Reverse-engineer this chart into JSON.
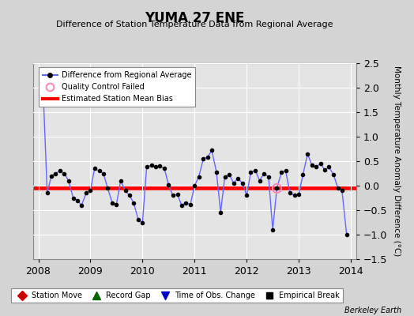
{
  "title": "YUMA 27 ENE",
  "subtitle": "Difference of Station Temperature Data from Regional Average",
  "ylabel": "Monthly Temperature Anomaly Difference (°C)",
  "xlim": [
    2007.9,
    2014.1
  ],
  "ylim": [
    -1.5,
    2.5
  ],
  "yticks": [
    -1.5,
    -1.0,
    -0.5,
    0,
    0.5,
    1.0,
    1.5,
    2.0,
    2.5
  ],
  "xticks": [
    2008,
    2009,
    2010,
    2011,
    2012,
    2013,
    2014
  ],
  "bias_level": -0.05,
  "bg_fig_color": "#d4d4d4",
  "bg_ax_color": "#e4e4e4",
  "line_color": "#6666ff",
  "marker_color": "#000000",
  "bias_color": "#ff0000",
  "qc_fail_x": 2012.58,
  "qc_fail_y": -0.05,
  "time_series": [
    [
      2008.08,
      2.3
    ],
    [
      2008.17,
      -0.15
    ],
    [
      2008.25,
      0.2
    ],
    [
      2008.33,
      0.25
    ],
    [
      2008.42,
      0.3
    ],
    [
      2008.5,
      0.25
    ],
    [
      2008.58,
      0.1
    ],
    [
      2008.67,
      -0.25
    ],
    [
      2008.75,
      -0.3
    ],
    [
      2008.83,
      -0.4
    ],
    [
      2008.92,
      -0.15
    ],
    [
      2009.0,
      -0.1
    ],
    [
      2009.08,
      0.35
    ],
    [
      2009.17,
      0.3
    ],
    [
      2009.25,
      0.25
    ],
    [
      2009.33,
      -0.05
    ],
    [
      2009.42,
      -0.35
    ],
    [
      2009.5,
      -0.38
    ],
    [
      2009.58,
      0.1
    ],
    [
      2009.67,
      -0.1
    ],
    [
      2009.75,
      -0.2
    ],
    [
      2009.83,
      -0.35
    ],
    [
      2009.92,
      -0.7
    ],
    [
      2010.0,
      -0.75
    ],
    [
      2010.08,
      0.38
    ],
    [
      2010.17,
      0.42
    ],
    [
      2010.25,
      0.38
    ],
    [
      2010.33,
      0.4
    ],
    [
      2010.42,
      0.35
    ],
    [
      2010.5,
      0.02
    ],
    [
      2010.58,
      -0.2
    ],
    [
      2010.67,
      -0.18
    ],
    [
      2010.75,
      -0.4
    ],
    [
      2010.83,
      -0.35
    ],
    [
      2010.92,
      -0.38
    ],
    [
      2011.0,
      0.0
    ],
    [
      2011.08,
      0.18
    ],
    [
      2011.17,
      0.55
    ],
    [
      2011.25,
      0.58
    ],
    [
      2011.33,
      0.72
    ],
    [
      2011.42,
      0.28
    ],
    [
      2011.5,
      -0.55
    ],
    [
      2011.58,
      0.18
    ],
    [
      2011.67,
      0.22
    ],
    [
      2011.75,
      0.05
    ],
    [
      2011.83,
      0.15
    ],
    [
      2011.92,
      0.05
    ],
    [
      2012.0,
      -0.2
    ],
    [
      2012.08,
      0.28
    ],
    [
      2012.17,
      0.3
    ],
    [
      2012.25,
      0.1
    ],
    [
      2012.33,
      0.25
    ],
    [
      2012.42,
      0.18
    ],
    [
      2012.5,
      -0.9
    ],
    [
      2012.58,
      -0.05
    ],
    [
      2012.67,
      0.28
    ],
    [
      2012.75,
      0.3
    ],
    [
      2012.83,
      -0.15
    ],
    [
      2012.92,
      -0.2
    ],
    [
      2013.0,
      -0.18
    ],
    [
      2013.08,
      0.22
    ],
    [
      2013.17,
      0.65
    ],
    [
      2013.25,
      0.42
    ],
    [
      2013.33,
      0.38
    ],
    [
      2013.42,
      0.45
    ],
    [
      2013.5,
      0.32
    ],
    [
      2013.58,
      0.38
    ],
    [
      2013.67,
      0.22
    ],
    [
      2013.75,
      -0.05
    ],
    [
      2013.83,
      -0.1
    ],
    [
      2013.92,
      -1.0
    ]
  ],
  "footer_text": "Berkeley Earth"
}
